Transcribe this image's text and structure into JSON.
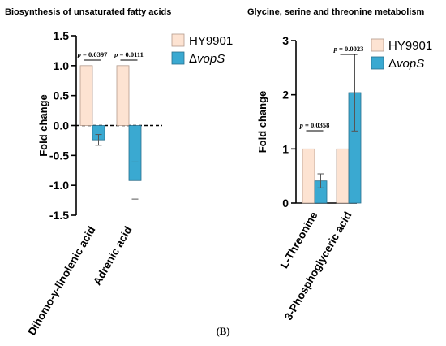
{
  "figure": {
    "panel_label": "(B)"
  },
  "colors": {
    "hy9901_fill": "#fde3d2",
    "hy9901_stroke": "#b49a8c",
    "vops_fill": "#3aa9d1",
    "vops_stroke": "#2a6f8c"
  },
  "chart_data": [
    {
      "type": "bar",
      "title": "Biosynthesis of unsaturated fatty acids",
      "ylabel": "Fold change",
      "xlabel": "",
      "ylim": [
        -1.5,
        1.5
      ],
      "yticks": [
        -1.5,
        -1.0,
        -0.5,
        0.0,
        0.5,
        1.0,
        1.5
      ],
      "ytick_labels": [
        "-1.5",
        "-1.0",
        "-0.5",
        "0.0",
        "0.5",
        "1.0",
        "1.5"
      ],
      "categories": [
        "Dihomo-γ-linolenic acid",
        "Adrenic acid"
      ],
      "series": [
        {
          "name": "HY9901",
          "values": [
            1.0,
            1.0
          ],
          "errors": [
            0,
            0
          ]
        },
        {
          "name": "ΔvopS",
          "values": [
            -0.24,
            -0.92
          ],
          "errors": [
            0.09,
            0.31
          ]
        }
      ],
      "annotations": [
        {
          "category": "Dihomo-γ-linolenic acid",
          "text": "p = 0.0397"
        },
        {
          "category": "Adrenic acid",
          "text": "p = 0.0111"
        }
      ],
      "legend": [
        "HY9901",
        "ΔvopS"
      ],
      "legend_position": "top-right",
      "grid": false
    },
    {
      "type": "bar",
      "title": "Glycine, serine and threonine metabolism",
      "ylabel": "Fold change",
      "xlabel": "",
      "ylim": [
        0,
        3
      ],
      "yticks": [
        0,
        1,
        2,
        3
      ],
      "ytick_labels": [
        "0",
        "1",
        "2",
        "3"
      ],
      "categories": [
        "L-Threonine",
        "3-Phosphoglyceric acid"
      ],
      "series": [
        {
          "name": "HY9901",
          "values": [
            1.0,
            1.0
          ],
          "errors": [
            0,
            0
          ]
        },
        {
          "name": "ΔvopS",
          "values": [
            0.41,
            2.04
          ],
          "errors": [
            0.13,
            0.71
          ]
        }
      ],
      "annotations": [
        {
          "category": "L-Threonine",
          "text": "p = 0.0358"
        },
        {
          "category": "3-Phosphoglyceric acid",
          "text": "p = 0.0023"
        }
      ],
      "legend": [
        "HY9901",
        "ΔvopS"
      ],
      "legend_position": "top-right",
      "grid": false
    }
  ]
}
